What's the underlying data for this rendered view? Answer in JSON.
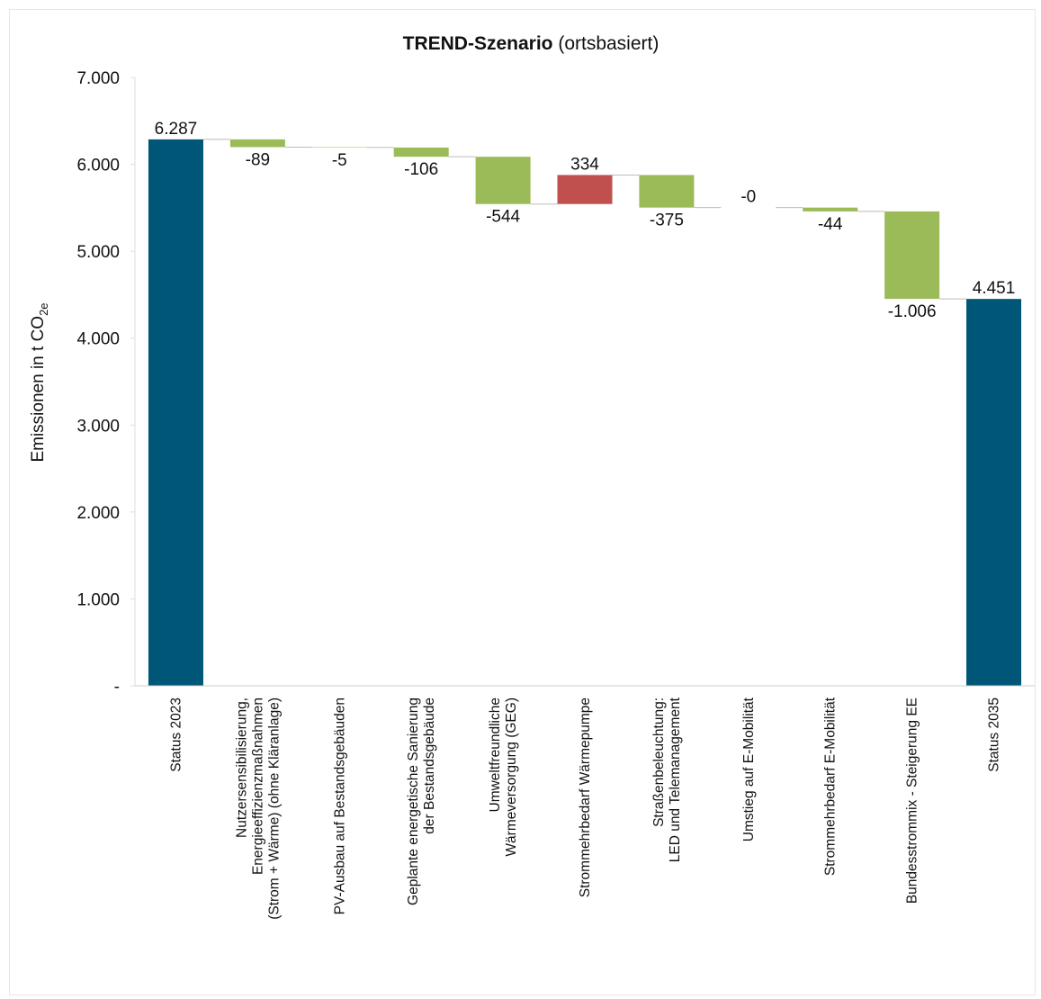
{
  "chart_data": {
    "type": "waterfall",
    "title": "TREND-Szenario",
    "subtitle": "(ortsbasiert)",
    "y_label": {
      "text": "Emissionen in t CO",
      "subscript": "2e"
    },
    "categories": [
      [
        "Status 2023"
      ],
      [
        "Nutzersensibilisierung,",
        "Energieeffizienzmaßnahmen",
        "(Strom + Wärme) (ohne Kläranlage)"
      ],
      [
        "PV-Ausbau auf Bestandsgebäuden"
      ],
      [
        "Geplante energetische Sanierung",
        "der Bestandsgebäude"
      ],
      [
        "Umweltfreundliche",
        "Wärmeversorgung (GEG)"
      ],
      [
        "Strommehrbedarf Wärmepumpe"
      ],
      [
        "Straßenbeleuchtung:",
        "LED und Telemanagement"
      ],
      [
        "Umstieg auf E-Mobilität"
      ],
      [
        "Strommehrbedarf E-Mobilität"
      ],
      [
        "Bundesstrommix - Steigerung EE"
      ],
      [
        "Status 2035"
      ]
    ],
    "kinds": [
      "total",
      "delta",
      "delta",
      "delta",
      "delta",
      "delta",
      "delta",
      "delta",
      "delta",
      "delta",
      "total"
    ],
    "values": [
      6287,
      -89,
      -5,
      -106,
      -544,
      334,
      -375,
      0,
      -44,
      -1006,
      4451
    ],
    "value_labels": [
      "6.287",
      "-89",
      "-5",
      "-106",
      "-544",
      "334",
      "-375",
      "-0",
      "-44",
      "-1.006",
      "4.451"
    ],
    "colors": {
      "total": "#005677",
      "decrease": "#9bbb59",
      "increase": "#c0504d"
    },
    "ylim": [
      0,
      7000
    ],
    "yticks": [
      {
        "value": 0,
        "label": "-"
      },
      {
        "value": 1000,
        "label": "1.000"
      },
      {
        "value": 2000,
        "label": "2.000"
      },
      {
        "value": 3000,
        "label": "3.000"
      },
      {
        "value": 4000,
        "label": "4.000"
      },
      {
        "value": 5000,
        "label": "5.000"
      },
      {
        "value": 6000,
        "label": "6.000"
      },
      {
        "value": 7000,
        "label": "7.000"
      }
    ]
  }
}
